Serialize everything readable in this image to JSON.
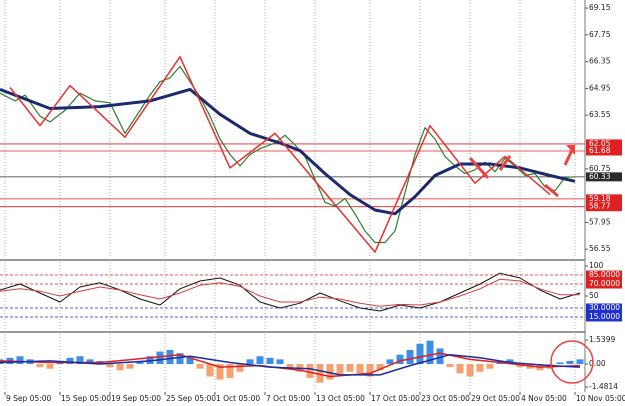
{
  "chart_data": [
    {
      "type": "line",
      "xlim": [
        0,
        117
      ],
      "xticks": [
        {
          "value": 1,
          "label": "9 Sep 05:00"
        },
        {
          "value": 12,
          "label": "15 Sep 05:00"
        },
        {
          "value": 22,
          "label": "19 Sep 05:00"
        },
        {
          "value": 33,
          "label": "25 Sep 05:00"
        },
        {
          "value": 43,
          "label": "1 Oct 05:00"
        },
        {
          "value": 53,
          "label": "7 Oct 05:00"
        },
        {
          "value": 63,
          "label": "13 Oct 05:00"
        },
        {
          "value": 74,
          "label": "17 Oct 05:00"
        },
        {
          "value": 84,
          "label": "23 Oct 05:00"
        },
        {
          "value": 94,
          "label": "29 Oct 05:00"
        },
        {
          "value": 104,
          "label": "4 Nov 05:00"
        },
        {
          "value": 115,
          "label": "10 Nov 05:00"
        }
      ],
      "ylim": [
        56.09,
        69.57
      ],
      "yticks": [
        69.15,
        67.75,
        66.35,
        64.95,
        63.55,
        60.75,
        57.95,
        56.55
      ],
      "grid": true,
      "hlines": [
        {
          "value": 62.05,
          "color": "#e02020"
        },
        {
          "value": 61.68,
          "color": "#e02020"
        },
        {
          "value": 60.33,
          "color": "#2b2b2b"
        },
        {
          "value": 59.18,
          "color": "#e02020"
        },
        {
          "value": 58.77,
          "color": "#e02020"
        }
      ],
      "series": [
        {
          "color": "#2e7d32",
          "width": 1.2,
          "x": [
            0,
            3,
            5,
            8,
            10,
            13,
            16,
            19,
            22,
            25,
            27,
            30,
            32,
            34,
            36,
            38,
            40,
            42,
            44,
            46,
            48,
            50,
            52,
            55,
            57,
            59,
            61,
            63,
            65,
            67,
            69,
            71,
            73,
            75,
            77,
            79,
            81,
            83,
            85,
            87,
            89,
            91,
            93,
            95,
            97,
            99,
            101,
            103,
            105,
            107,
            109,
            111,
            113,
            115
          ],
          "values": [
            64.7,
            64.3,
            64.6,
            63.5,
            63.2,
            63.8,
            64.7,
            64.3,
            64.2,
            62.6,
            63.4,
            64.6,
            65.3,
            65.5,
            66.1,
            65.3,
            64.5,
            63.5,
            62.3,
            61.5,
            60.9,
            61.5,
            61.8,
            62.1,
            62.5,
            62.0,
            61.4,
            60.2,
            59.0,
            58.8,
            59.2,
            58.4,
            57.5,
            56.9,
            56.9,
            57.5,
            59.5,
            61.5,
            62.9,
            62.3,
            61.4,
            60.9,
            60.5,
            60.7,
            61.1,
            60.6,
            61.3,
            60.9,
            60.4,
            60.5,
            59.8,
            59.6,
            60.3,
            60.33
          ]
        },
        {
          "color": "#1a2a6c",
          "width": 3,
          "x": [
            0,
            10,
            20,
            30,
            38,
            44,
            50,
            56,
            60,
            65,
            70,
            75,
            79,
            83,
            87,
            92,
            98,
            104,
            110,
            115
          ],
          "values": [
            64.9,
            63.9,
            64.0,
            64.3,
            64.9,
            63.6,
            62.6,
            62.1,
            61.7,
            60.5,
            59.4,
            58.6,
            58.4,
            59.3,
            60.4,
            61.0,
            61.0,
            60.8,
            60.4,
            60.1
          ]
        },
        {
          "color": "#e83030",
          "width": 1.5,
          "x": [
            2,
            8,
            14,
            25,
            36,
            46,
            55,
            75,
            86,
            95,
            101,
            110
          ],
          "values": [
            65.0,
            63.0,
            65.1,
            62.4,
            66.6,
            60.8,
            62.6,
            56.4,
            63.0,
            60.0,
            61.4,
            59.4
          ]
        }
      ]
    },
    {
      "type": "line",
      "xlim": [
        0,
        117
      ],
      "ylim": [
        -6.7,
        106.7
      ],
      "yticks": [
        100,
        50
      ],
      "hlines": [
        {
          "value": 85,
          "label": "85.0000",
          "color": "#e02020"
        },
        {
          "value": 70,
          "label": "70.0000",
          "color": "#e02020"
        },
        {
          "value": 30,
          "label": "30.0000",
          "color": "#2030d0"
        },
        {
          "value": 15,
          "label": "15.0000",
          "color": "#2030d0"
        }
      ],
      "series": [
        {
          "color": "#111111",
          "width": 1,
          "x": [
            0,
            4,
            8,
            12,
            16,
            20,
            24,
            28,
            32,
            36,
            40,
            44,
            48,
            52,
            56,
            60,
            64,
            68,
            72,
            76,
            80,
            84,
            88,
            92,
            96,
            100,
            104,
            108,
            112,
            116
          ],
          "values": [
            60,
            70,
            55,
            40,
            65,
            72,
            60,
            45,
            35,
            62,
            75,
            80,
            68,
            40,
            30,
            38,
            55,
            42,
            30,
            25,
            35,
            30,
            40,
            55,
            70,
            88,
            80,
            60,
            45,
            55
          ]
        },
        {
          "color": "#d04040",
          "width": 1,
          "x": [
            0,
            4,
            8,
            12,
            16,
            20,
            24,
            28,
            32,
            36,
            40,
            44,
            48,
            52,
            56,
            60,
            64,
            68,
            72,
            76,
            80,
            84,
            88,
            92,
            96,
            100,
            104,
            108,
            112,
            116
          ],
          "values": [
            58,
            62,
            58,
            50,
            58,
            65,
            60,
            52,
            45,
            55,
            68,
            72,
            66,
            50,
            40,
            40,
            48,
            45,
            38,
            33,
            36,
            35,
            40,
            50,
            62,
            78,
            75,
            62,
            52,
            52
          ]
        }
      ]
    },
    {
      "type": "bar",
      "xlim": [
        0,
        117
      ],
      "ylim": [
        -1.67,
        1.93
      ],
      "yticks": [
        1.5399,
        {
          "value": 0,
          "label": "0.00"
        },
        -1.4814
      ],
      "color": "#3d8ee6",
      "negative_color": "#f4a070",
      "x": [
        0,
        2,
        4,
        6,
        8,
        10,
        12,
        14,
        16,
        18,
        20,
        22,
        24,
        26,
        28,
        30,
        32,
        34,
        36,
        38,
        40,
        42,
        44,
        46,
        48,
        50,
        52,
        54,
        56,
        58,
        60,
        62,
        64,
        66,
        68,
        70,
        72,
        74,
        76,
        78,
        80,
        82,
        84,
        86,
        88,
        90,
        92,
        94,
        96,
        98,
        100,
        102,
        104,
        106,
        108,
        110,
        112,
        114,
        116
      ],
      "values": [
        0.3,
        0.4,
        0.5,
        0.3,
        -0.2,
        -0.3,
        0.2,
        0.4,
        0.5,
        0.3,
        0.2,
        -0.2,
        -0.4,
        -0.3,
        0.2,
        0.5,
        0.8,
        0.9,
        0.7,
        0.4,
        -0.3,
        -0.8,
        -1.0,
        -0.9,
        -0.5,
        0.3,
        0.5,
        0.4,
        0.3,
        -0.2,
        -0.5,
        -0.9,
        -1.2,
        -1.0,
        -0.7,
        -0.5,
        -0.6,
        -0.8,
        -0.4,
        0.3,
        0.6,
        0.9,
        1.3,
        1.5,
        1.0,
        -0.2,
        -0.6,
        -0.8,
        -0.5,
        -0.3,
        0.2,
        0.3,
        -0.2,
        -0.3,
        -0.4,
        -0.3,
        0.1,
        0.2,
        0.3
      ],
      "series": [
        {
          "color": "#e02020",
          "width": 1.5,
          "x": [
            0,
            10,
            20,
            30,
            36,
            44,
            52,
            60,
            66,
            74,
            80,
            88,
            94,
            100,
            108,
            116
          ],
          "values": [
            0.2,
            0.1,
            0.1,
            0.4,
            0.6,
            -0.2,
            -0.1,
            -0.4,
            -0.8,
            -0.6,
            0.2,
            0.7,
            0.3,
            0.1,
            -0.2,
            -0.1
          ]
        },
        {
          "color": "#1a2aa0",
          "width": 1.5,
          "x": [
            0,
            10,
            20,
            30,
            38,
            46,
            54,
            62,
            68,
            76,
            82,
            90,
            96,
            102,
            110,
            116
          ],
          "values": [
            0.1,
            0.2,
            0.0,
            0.2,
            0.5,
            0.1,
            -0.2,
            -0.3,
            -0.7,
            -0.7,
            -0.1,
            0.6,
            0.4,
            0.1,
            -0.1,
            -0.2
          ]
        }
      ]
    }
  ]
}
